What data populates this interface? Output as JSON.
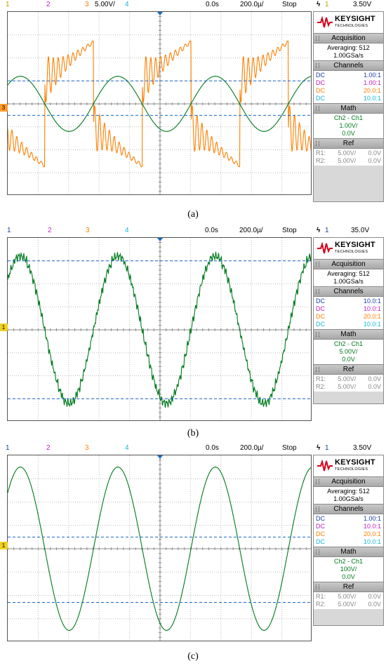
{
  "colors": {
    "ch1": "#d4c400",
    "ch2": "#d02ad0",
    "ch3": "#ff7f00",
    "ch4": "#18b7d6",
    "green": "#007a1e",
    "blue": "#1a66c8",
    "brandRed": "#d6001c",
    "ref": "#888888"
  },
  "panels": [
    {
      "caption": "(a)",
      "topbar": {
        "ch1": "1",
        "ch2": "2",
        "ch3": "3",
        "scale": "5.00V/",
        "ch4": "4",
        "delay": "0.0s",
        "timebase": "200.0µ/",
        "mode": "Stop",
        "trig_icon": "ϟ",
        "trig_ch": "1",
        "trig_level": "3.50V"
      },
      "sidebar": {
        "brand": "KEYSIGHT",
        "brand_sub": "TECHNOLOGIES",
        "acq_title": "Acquisition",
        "acq_avg": "Averaging: 512",
        "acq_rate": "1.00GSa/s",
        "ch_title": "Channels",
        "channels": [
          {
            "c": "DC",
            "v": "1.00:1"
          },
          {
            "c": "DC",
            "v": "1.00:1"
          },
          {
            "c": "DC",
            "v": "20.0:1"
          },
          {
            "c": "DC",
            "v": "10.0:1"
          }
        ],
        "math_title": "Math",
        "math_expr": "Ch2 - Ch1",
        "math_scale": "1.00V/",
        "math_offset": "0.0V",
        "ref_title": "Ref",
        "r1": "R1:",
        "r1a": "5.00V/",
        "r1b": "0.0V",
        "r2": "R2:",
        "r2a": "5.00V/",
        "r2b": "0.0V"
      }
    },
    {
      "caption": "(b)",
      "topbar": {
        "ch1": "1",
        "ch2": "2",
        "ch3": "3",
        "scale": "",
        "ch4": "4",
        "delay": "0.0s",
        "timebase": "200.0µ/",
        "mode": "Stop",
        "trig_icon": "ϟ",
        "trig_ch": "1",
        "trig_level": "35.0V"
      },
      "sidebar": {
        "brand": "KEYSIGHT",
        "brand_sub": "TECHNOLOGIES",
        "acq_title": "Acquisition",
        "acq_avg": "Averaging: 512",
        "acq_rate": "1.00GSa/s",
        "ch_title": "Channels",
        "channels": [
          {
            "c": "DC",
            "v": "10.0:1"
          },
          {
            "c": "DC",
            "v": "10.0:1"
          },
          {
            "c": "DC",
            "v": "20.0:1"
          },
          {
            "c": "DC",
            "v": "10.0:1"
          }
        ],
        "math_title": "Math",
        "math_expr": "Ch2 - Ch1",
        "math_scale": "5.00V/",
        "math_offset": "0.0V",
        "ref_title": "Ref",
        "r1": "R1:",
        "r1a": "5.00V/",
        "r1b": "0.0V",
        "r2": "R2:",
        "r2a": "5.00V/",
        "r2b": "0.0V"
      }
    },
    {
      "caption": "(c)",
      "topbar": {
        "ch1": "1",
        "ch2": "2",
        "ch3": "3",
        "scale": "",
        "ch4": "4",
        "delay": "0.0s",
        "timebase": "200.0µ/",
        "mode": "Stop",
        "trig_icon": "ϟ",
        "trig_ch": "1",
        "trig_level": "3.50V"
      },
      "sidebar": {
        "brand": "KEYSIGHT",
        "brand_sub": "TECHNOLOGIES",
        "acq_title": "Acquisition",
        "acq_avg": "Averaging: 512",
        "acq_rate": "1.00GSa/s",
        "ch_title": "Channels",
        "channels": [
          {
            "c": "DC",
            "v": "1.00:1"
          },
          {
            "c": "DC",
            "v": "10.0:1"
          },
          {
            "c": "DC",
            "v": "20.0:1"
          },
          {
            "c": "DC",
            "v": "10.0:1"
          }
        ],
        "math_title": "Math",
        "math_expr": "Ch2 - Ch1",
        "math_scale": "100V/",
        "math_offset": "0.0V",
        "ref_title": "Ref",
        "r1": "R1:",
        "r1a": "5.00V/",
        "r1b": "0.0V",
        "r2": "R2:",
        "r2a": "5.00V/",
        "r2b": "0.0V"
      }
    }
  ],
  "chart_data": [
    {
      "type": "line",
      "x_divisions": 10,
      "y_divisions": 8,
      "grid": true,
      "series": [
        {
          "kind": "square-ringing",
          "color": "orange",
          "cycles": 3,
          "period_div": 3.2,
          "amplitude_div": 3.0,
          "ringing": true
        },
        {
          "kind": "sine",
          "color": "green",
          "cycles": 3,
          "period_div": 3.2,
          "amplitude_div": 1.2
        }
      ],
      "cursors_div": [
        1.0,
        -0.5
      ]
    },
    {
      "type": "line",
      "x_divisions": 10,
      "y_divisions": 8,
      "grid": true,
      "series": [
        {
          "kind": "staircase-sine",
          "color": "green",
          "cycles": 3,
          "period_div": 3.2,
          "amplitude_div": 3.2
        }
      ],
      "cursors_div": [
        3.0,
        -3.0
      ]
    },
    {
      "type": "line",
      "x_divisions": 10,
      "y_divisions": 8,
      "grid": true,
      "series": [
        {
          "kind": "sine",
          "color": "green",
          "cycles": 3,
          "period_div": 3.2,
          "amplitude_div": 3.5
        }
      ],
      "cursors_div": [
        0.5,
        -2.3
      ]
    }
  ]
}
